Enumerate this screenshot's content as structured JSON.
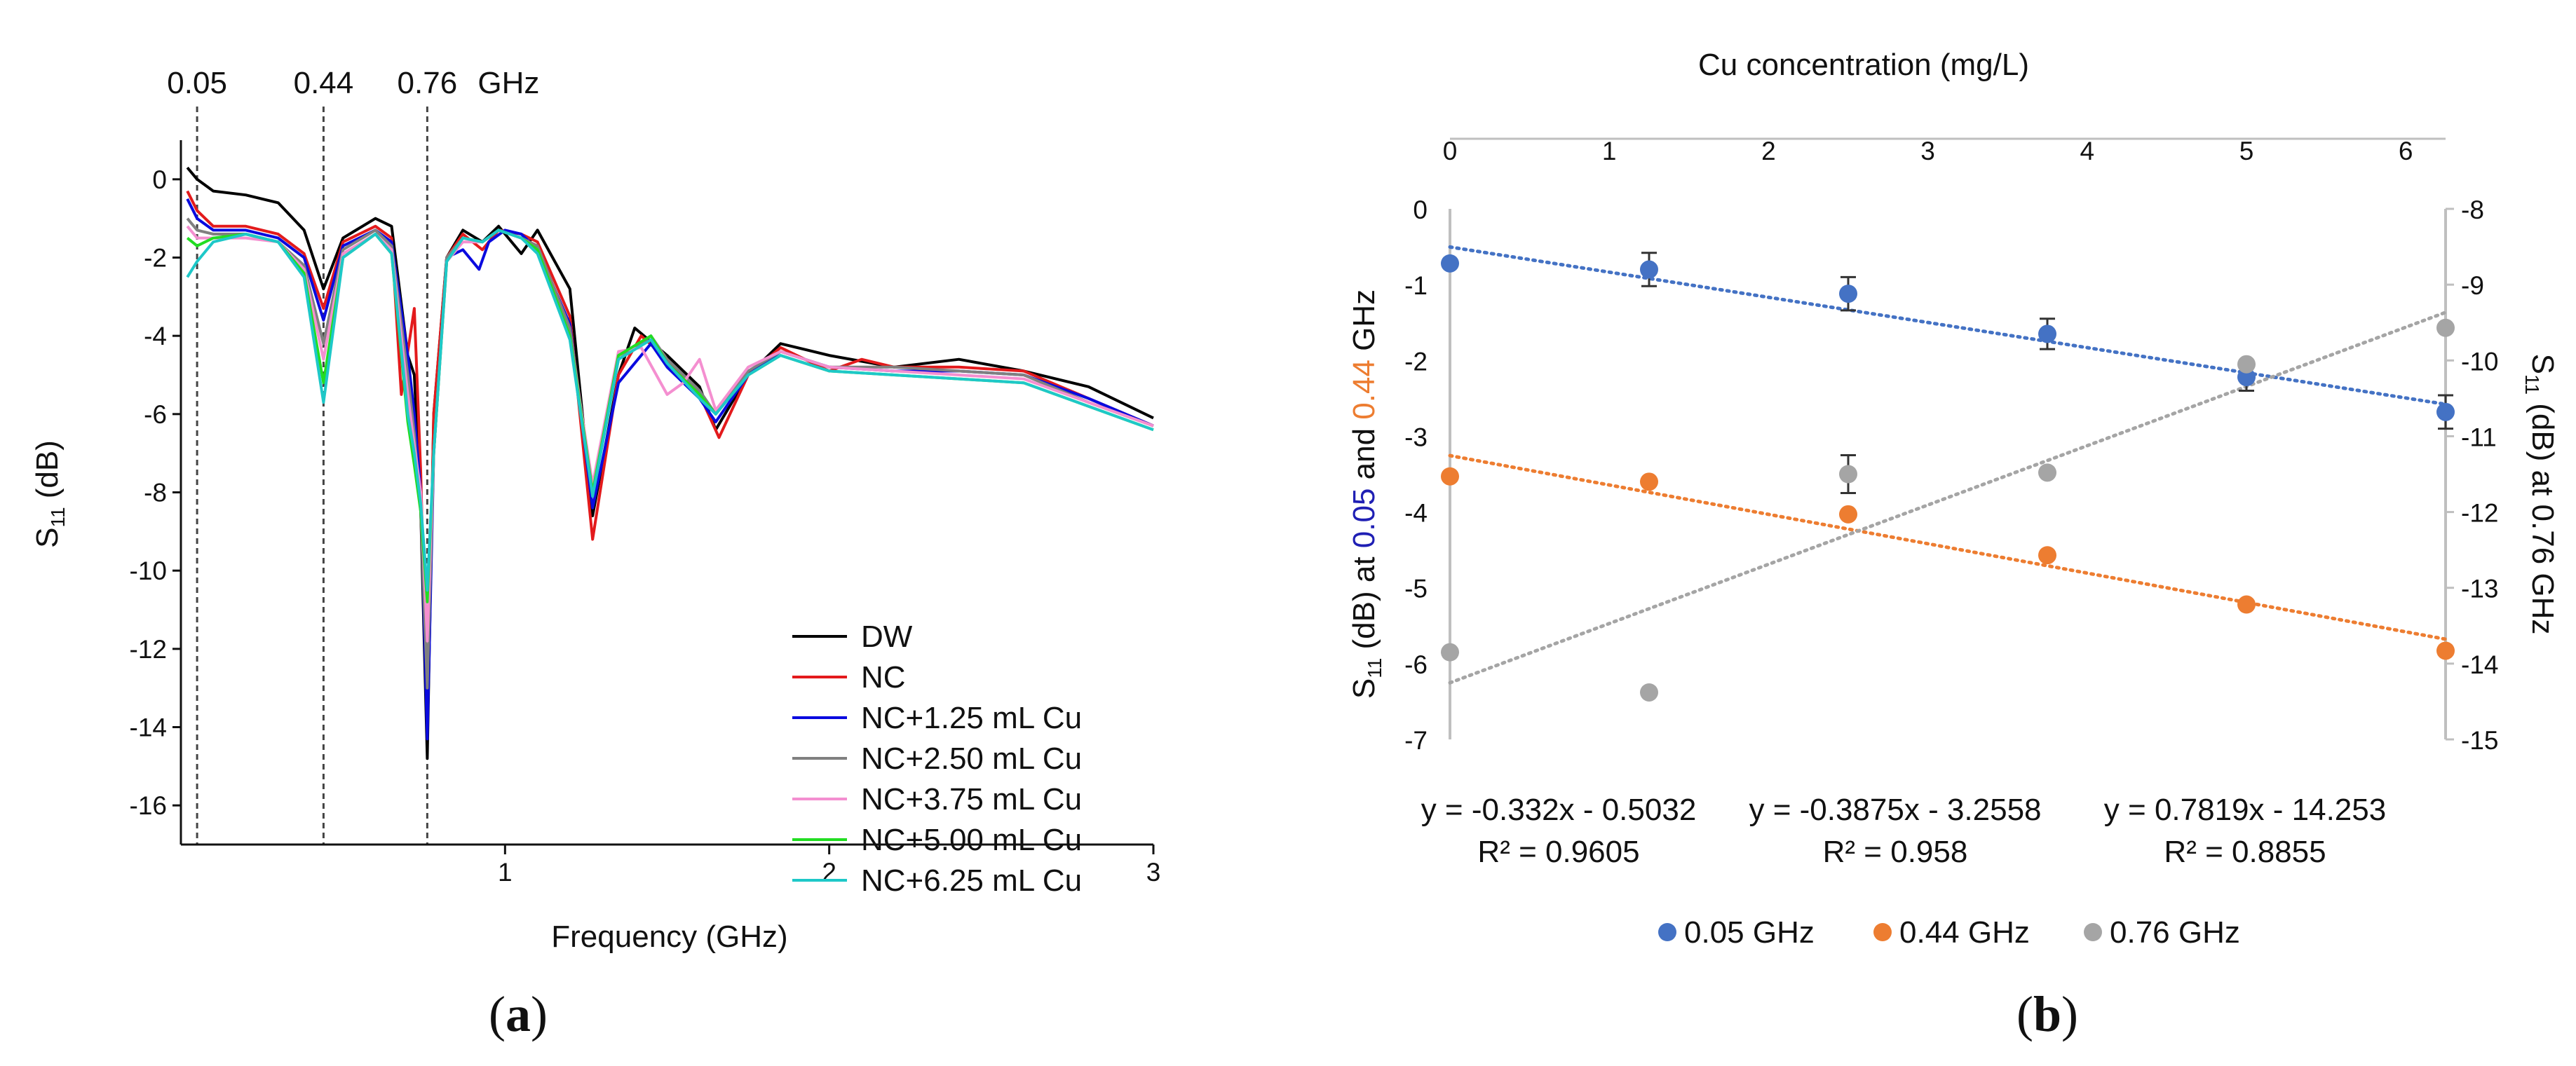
{
  "chart_data": [
    {
      "panel": "a",
      "type": "line",
      "panel_label": "a",
      "xlabel": "Frequency (GHz)",
      "ylabel_main": "S",
      "ylabel_sub": "11",
      "ylabel_unit": " (dB)",
      "xlim": [
        0,
        3
      ],
      "ylim": [
        -17,
        1
      ],
      "xticks": [
        "1",
        "2",
        "3"
      ],
      "xtick_values": [
        1,
        2,
        3
      ],
      "yticks": [
        "0",
        "-2",
        "-4",
        "-6",
        "-8",
        "-10",
        "-12",
        "-14",
        "-16"
      ],
      "ytick_values": [
        0,
        -2,
        -4,
        -6,
        -8,
        -10,
        -12,
        -14,
        -16
      ],
      "marker_lines": [
        {
          "x": 0.05,
          "label": "0.05"
        },
        {
          "x": 0.44,
          "label": "0.44"
        },
        {
          "x": 0.76,
          "label": "0.76"
        }
      ],
      "marker_unit": "GHz",
      "legend_position": "bottom-right",
      "series": [
        {
          "name": "DW",
          "color": "#000000",
          "x": [
            0.02,
            0.05,
            0.1,
            0.2,
            0.3,
            0.38,
            0.44,
            0.5,
            0.6,
            0.65,
            0.7,
            0.72,
            0.74,
            0.76,
            0.78,
            0.82,
            0.87,
            0.93,
            0.98,
            1.05,
            1.1,
            1.2,
            1.27,
            1.35,
            1.4,
            1.5,
            1.6,
            1.65,
            1.75,
            1.85,
            2.0,
            2.2,
            2.4,
            2.6,
            2.8,
            3.0
          ],
          "y": [
            0.3,
            0.0,
            -0.3,
            -0.4,
            -0.6,
            -1.3,
            -2.8,
            -1.5,
            -1.0,
            -1.2,
            -4.5,
            -5.0,
            -8.5,
            -14.8,
            -6.0,
            -2.0,
            -1.3,
            -1.6,
            -1.2,
            -1.9,
            -1.3,
            -2.8,
            -8.6,
            -5.0,
            -3.8,
            -4.5,
            -5.3,
            -6.4,
            -5.0,
            -4.2,
            -4.5,
            -4.8,
            -4.6,
            -4.9,
            -5.3,
            -6.1
          ]
        },
        {
          "name": "NC",
          "color": "#e31a1c",
          "x": [
            0.02,
            0.05,
            0.1,
            0.2,
            0.3,
            0.38,
            0.44,
            0.5,
            0.6,
            0.65,
            0.68,
            0.72,
            0.74,
            0.76,
            0.78,
            0.82,
            0.87,
            0.93,
            0.98,
            1.05,
            1.1,
            1.2,
            1.27,
            1.35,
            1.42,
            1.5,
            1.6,
            1.66,
            1.75,
            1.85,
            2.0,
            2.1,
            2.2,
            2.4,
            2.6,
            2.8,
            3.0
          ],
          "y": [
            -0.3,
            -0.8,
            -1.2,
            -1.2,
            -1.4,
            -1.9,
            -3.3,
            -1.6,
            -1.2,
            -1.5,
            -5.5,
            -3.3,
            -7.5,
            -14.0,
            -6.0,
            -2.0,
            -1.4,
            -1.8,
            -1.3,
            -1.4,
            -1.6,
            -3.5,
            -9.2,
            -5.0,
            -4.0,
            -4.6,
            -5.5,
            -6.6,
            -5.0,
            -4.3,
            -4.9,
            -4.6,
            -4.8,
            -4.8,
            -4.9,
            -5.6,
            -6.3
          ]
        },
        {
          "name": "NC+1.25 mL Cu",
          "color": "#0a0adf",
          "x": [
            0.02,
            0.05,
            0.1,
            0.2,
            0.3,
            0.38,
            0.44,
            0.5,
            0.6,
            0.65,
            0.7,
            0.72,
            0.74,
            0.76,
            0.78,
            0.82,
            0.87,
            0.92,
            0.95,
            1.0,
            1.05,
            1.1,
            1.2,
            1.27,
            1.35,
            1.45,
            1.5,
            1.6,
            1.65,
            1.75,
            1.85,
            2.0,
            2.2,
            2.4,
            2.6,
            2.8,
            3.0
          ],
          "y": [
            -0.5,
            -1.0,
            -1.3,
            -1.3,
            -1.5,
            -2.0,
            -3.6,
            -1.7,
            -1.3,
            -1.6,
            -4.5,
            -6.0,
            -8.0,
            -14.3,
            -7.0,
            -2.0,
            -1.8,
            -2.3,
            -1.6,
            -1.3,
            -1.4,
            -1.8,
            -3.7,
            -8.4,
            -5.2,
            -4.2,
            -4.8,
            -5.6,
            -6.2,
            -5.0,
            -4.4,
            -4.8,
            -4.9,
            -4.9,
            -5.0,
            -5.6,
            -6.3
          ]
        },
        {
          "name": "NC+2.50 mL Cu",
          "color": "#808080",
          "x": [
            0.02,
            0.05,
            0.1,
            0.2,
            0.3,
            0.38,
            0.44,
            0.5,
            0.6,
            0.65,
            0.7,
            0.72,
            0.74,
            0.76,
            0.78,
            0.82,
            0.87,
            0.93,
            0.98,
            1.05,
            1.1,
            1.2,
            1.27,
            1.35,
            1.45,
            1.5,
            1.6,
            1.65,
            1.75,
            1.85,
            2.0,
            2.2,
            2.4,
            2.6,
            2.8,
            3.0
          ],
          "y": [
            -1.0,
            -1.3,
            -1.4,
            -1.4,
            -1.6,
            -2.2,
            -4.2,
            -1.8,
            -1.3,
            -1.7,
            -5.0,
            -6.5,
            -8.5,
            -13.0,
            -7.0,
            -2.0,
            -1.5,
            -1.6,
            -1.3,
            -1.5,
            -1.7,
            -3.8,
            -8.0,
            -4.6,
            -4.0,
            -4.6,
            -5.4,
            -6.0,
            -4.9,
            -4.4,
            -4.8,
            -4.8,
            -4.9,
            -5.0,
            -5.7,
            -6.3
          ]
        },
        {
          "name": "NC+3.75 mL Cu",
          "color": "#f48fd0",
          "x": [
            0.02,
            0.05,
            0.1,
            0.2,
            0.3,
            0.38,
            0.44,
            0.5,
            0.6,
            0.65,
            0.7,
            0.72,
            0.74,
            0.76,
            0.78,
            0.82,
            0.87,
            0.93,
            0.98,
            1.05,
            1.1,
            1.2,
            1.27,
            1.35,
            1.42,
            1.5,
            1.55,
            1.6,
            1.65,
            1.75,
            1.85,
            2.0,
            2.2,
            2.4,
            2.6,
            2.8,
            3.0
          ],
          "y": [
            -1.2,
            -1.5,
            -1.5,
            -1.5,
            -1.6,
            -2.3,
            -4.6,
            -1.9,
            -1.4,
            -1.8,
            -5.5,
            -6.8,
            -8.0,
            -11.8,
            -7.0,
            -2.1,
            -1.6,
            -1.6,
            -1.3,
            -1.5,
            -1.8,
            -4.0,
            -7.8,
            -4.4,
            -4.3,
            -5.5,
            -5.2,
            -4.6,
            -5.9,
            -4.8,
            -4.4,
            -4.8,
            -4.9,
            -5.0,
            -5.1,
            -5.7,
            -6.3
          ]
        },
        {
          "name": "NC+5.00 mL Cu",
          "color": "#22dd22",
          "x": [
            0.02,
            0.05,
            0.1,
            0.2,
            0.3,
            0.38,
            0.44,
            0.5,
            0.6,
            0.65,
            0.7,
            0.72,
            0.74,
            0.76,
            0.78,
            0.82,
            0.87,
            0.93,
            0.98,
            1.05,
            1.1,
            1.2,
            1.27,
            1.35,
            1.45,
            1.5,
            1.6,
            1.65,
            1.75,
            1.85,
            2.0,
            2.2,
            2.4,
            2.6,
            2.8,
            3.0
          ],
          "y": [
            -1.5,
            -1.7,
            -1.5,
            -1.4,
            -1.6,
            -2.4,
            -5.2,
            -2.0,
            -1.4,
            -1.9,
            -6.2,
            -7.3,
            -8.5,
            -10.8,
            -7.0,
            -2.1,
            -1.5,
            -1.6,
            -1.3,
            -1.5,
            -1.8,
            -4.0,
            -8.0,
            -4.5,
            -4.0,
            -4.7,
            -5.5,
            -6.0,
            -5.0,
            -4.5,
            -4.9,
            -5.0,
            -5.1,
            -5.2,
            -5.8,
            -6.4
          ]
        },
        {
          "name": "NC+6.25 mL Cu",
          "color": "#1ec8c8",
          "x": [
            0.02,
            0.05,
            0.1,
            0.2,
            0.3,
            0.38,
            0.44,
            0.5,
            0.6,
            0.65,
            0.7,
            0.72,
            0.74,
            0.76,
            0.78,
            0.82,
            0.87,
            0.93,
            0.98,
            1.05,
            1.1,
            1.2,
            1.27,
            1.35,
            1.45,
            1.5,
            1.6,
            1.65,
            1.75,
            1.85,
            2.0,
            2.2,
            2.4,
            2.6,
            2.8,
            3.0
          ],
          "y": [
            -2.5,
            -2.1,
            -1.6,
            -1.4,
            -1.6,
            -2.5,
            -5.7,
            -2.0,
            -1.4,
            -1.9,
            -6.0,
            -7.0,
            -8.3,
            -10.5,
            -7.0,
            -2.1,
            -1.5,
            -1.6,
            -1.3,
            -1.5,
            -1.9,
            -4.1,
            -8.1,
            -4.6,
            -4.1,
            -4.7,
            -5.6,
            -6.0,
            -5.0,
            -4.5,
            -4.9,
            -5.0,
            -5.1,
            -5.2,
            -5.8,
            -6.4
          ]
        }
      ]
    },
    {
      "panel": "b",
      "type": "scatter",
      "panel_label": "b",
      "xlabel_top": "Cu concentration (mg/L)",
      "xlim": [
        0,
        6.25
      ],
      "xticks": [
        "0",
        "1",
        "2",
        "3",
        "4",
        "5",
        "6"
      ],
      "xtick_values": [
        0,
        1,
        2,
        3,
        4,
        5,
        6
      ],
      "ylim_left": [
        -7,
        0
      ],
      "yticks_left": [
        "0",
        "-1",
        "-2",
        "-3",
        "-4",
        "-5",
        "-6",
        "-7"
      ],
      "ytick_left_values": [
        0,
        -1,
        -2,
        -3,
        -4,
        -5,
        -6,
        -7
      ],
      "ylim_right": [
        -15,
        -8
      ],
      "yticks_right": [
        "-8",
        "-9",
        "-10",
        "-11",
        "-12",
        "-13",
        "-14",
        "-15"
      ],
      "ytick_right_values": [
        -8,
        -9,
        -10,
        -11,
        -12,
        -13,
        -14,
        -15
      ],
      "ylabel_left_parts": [
        {
          "text": "S",
          "color": "#111111"
        },
        {
          "text": "11",
          "color": "#111111",
          "sub": true
        },
        {
          "text": " (dB) at ",
          "color": "#111111"
        },
        {
          "text": "0.05",
          "color": "#1f1fb4"
        },
        {
          "text": " and ",
          "color": "#111111"
        },
        {
          "text": "0.44",
          "color": "#ed7d31"
        },
        {
          "text": " GHz",
          "color": "#111111"
        }
      ],
      "ylabel_right_parts": [
        {
          "text": "S",
          "color": "#111111"
        },
        {
          "text": "11",
          "color": "#111111",
          "sub": true
        },
        {
          "text": " (dB) at ",
          "color": "#111111"
        },
        {
          "text": "0.76",
          "color": "#111111"
        },
        {
          "text": " GHz",
          "color": "#111111"
        }
      ],
      "legend_position": "bottom",
      "series": [
        {
          "name": "0.05 GHz",
          "color": "#4472c4",
          "axis": "left",
          "x": [
            0,
            1.25,
            2.5,
            3.75,
            5.0,
            6.25
          ],
          "y": [
            -0.72,
            -0.8,
            -1.12,
            -1.65,
            -2.22,
            -2.68
          ],
          "err": [
            0.0,
            0.22,
            0.22,
            0.2,
            0.18,
            0.22
          ],
          "fit": {
            "slope": -0.332,
            "intercept": -0.5032
          },
          "equation": "y = -0.332x - 0.5032",
          "r2": "R² = 0.9605",
          "text_color": "#1f1fb4"
        },
        {
          "name": "0.44 GHz",
          "color": "#ed7d31",
          "axis": "left",
          "x": [
            0,
            1.25,
            2.5,
            3.75,
            5.0,
            6.25
          ],
          "y": [
            -3.53,
            -3.6,
            -4.03,
            -4.57,
            -5.22,
            -5.83
          ],
          "err": [
            0,
            0,
            0,
            0,
            0,
            0
          ],
          "fit": {
            "slope": -0.3875,
            "intercept": -3.2558
          },
          "equation": "y = -0.3875x - 3.2558",
          "r2": "R² = 0.958",
          "text_color": "#ed7d31"
        },
        {
          "name": "0.76 GHz",
          "color": "#a5a5a5",
          "axis": "right",
          "x": [
            0,
            1.25,
            2.5,
            3.75,
            5.0,
            6.25
          ],
          "y": [
            -13.85,
            -14.38,
            -11.5,
            -11.48,
            -10.05,
            -9.57
          ],
          "err": [
            0.0,
            0.0,
            0.25,
            0.0,
            0.0,
            0.0
          ],
          "fit": {
            "slope": 0.7819,
            "intercept": -14.253
          },
          "equation": "y = 0.7819x - 14.253",
          "r2": "R² = 0.8855",
          "text_color": "#8c8c8c"
        }
      ]
    }
  ]
}
